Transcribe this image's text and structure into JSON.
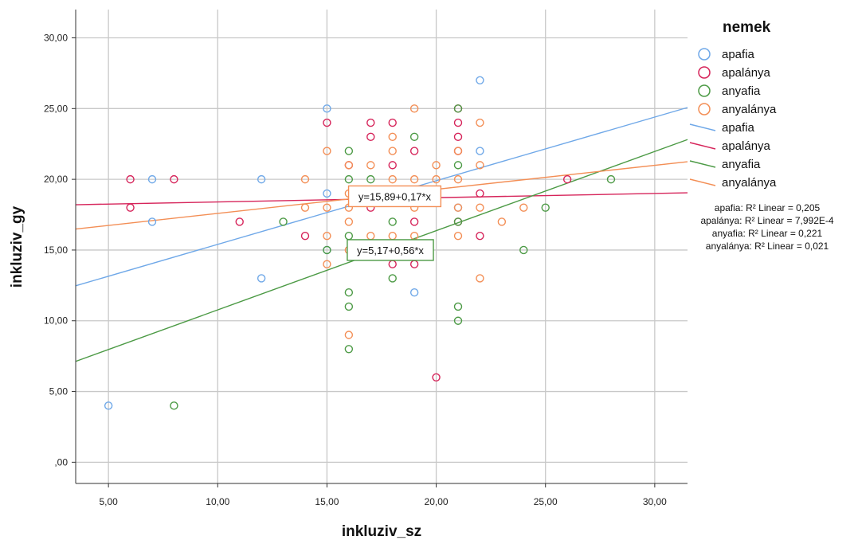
{
  "chart_data": {
    "type": "scatter",
    "xlabel": "inkluziv_sz",
    "ylabel": "inkluziv_gy",
    "xlim": [
      3.5,
      31.5
    ],
    "ylim": [
      -1.5,
      32
    ],
    "xticks": [
      "5,00",
      "10,00",
      "15,00",
      "20,00",
      "25,00",
      "30,00"
    ],
    "xtick_values": [
      5,
      10,
      15,
      20,
      25,
      30
    ],
    "yticks": [
      ",00",
      "5,00",
      "10,00",
      "15,00",
      "20,00",
      "25,00",
      "30,00"
    ],
    "ytick_values": [
      0,
      5,
      10,
      15,
      20,
      25,
      30
    ],
    "grid": true,
    "legend_title": "nemek",
    "legend_position": "right",
    "series": [
      {
        "name": "apafia",
        "color": "#6fa8e8",
        "points": [
          [
            5,
            4
          ],
          [
            7,
            20
          ],
          [
            7,
            17
          ],
          [
            12,
            20
          ],
          [
            12,
            13
          ],
          [
            15,
            25
          ],
          [
            15,
            19
          ],
          [
            15,
            15
          ],
          [
            19,
            12
          ],
          [
            21,
            18
          ],
          [
            22,
            27
          ],
          [
            22,
            22
          ]
        ],
        "fit": {
          "intercept": 10.9,
          "slope": 0.45
        },
        "r2_label": "apafia: R² Linear = 0,205"
      },
      {
        "name": "apalánya",
        "color": "#d6245a",
        "points": [
          [
            6,
            20
          ],
          [
            6,
            18
          ],
          [
            8,
            20
          ],
          [
            11,
            17
          ],
          [
            14,
            16
          ],
          [
            15,
            24
          ],
          [
            16,
            21
          ],
          [
            17,
            24
          ],
          [
            17,
            23
          ],
          [
            17,
            18
          ],
          [
            18,
            24
          ],
          [
            18,
            21
          ],
          [
            18,
            14
          ],
          [
            19,
            22
          ],
          [
            19,
            17
          ],
          [
            19,
            14
          ],
          [
            20,
            6
          ],
          [
            21,
            25
          ],
          [
            21,
            24
          ],
          [
            21,
            23
          ],
          [
            21,
            22
          ],
          [
            21,
            17
          ],
          [
            22,
            19
          ],
          [
            22,
            16
          ],
          [
            26,
            20
          ]
        ],
        "fit": {
          "intercept": 18.1,
          "slope": 0.03
        },
        "r2_label": "apalánya: R² Linear = 7,992E-4"
      },
      {
        "name": "anyafia",
        "color": "#4c9a45",
        "points": [
          [
            8,
            4
          ],
          [
            13,
            17
          ],
          [
            15,
            15
          ],
          [
            16,
            22
          ],
          [
            16,
            20
          ],
          [
            16,
            16
          ],
          [
            16,
            12
          ],
          [
            16,
            11
          ],
          [
            16,
            8
          ],
          [
            17,
            20
          ],
          [
            18,
            17
          ],
          [
            18,
            13
          ],
          [
            19,
            23
          ],
          [
            21,
            25
          ],
          [
            21,
            21
          ],
          [
            21,
            17
          ],
          [
            21,
            11
          ],
          [
            21,
            10
          ],
          [
            24,
            15
          ],
          [
            25,
            18
          ],
          [
            28,
            20
          ]
        ],
        "fit": {
          "intercept": 5.17,
          "slope": 0.56
        },
        "r2_label": "anyafia: R² Linear = 0,221"
      },
      {
        "name": "anyalánya",
        "color": "#f38e55",
        "points": [
          [
            14,
            20
          ],
          [
            14,
            18
          ],
          [
            15,
            22
          ],
          [
            15,
            18
          ],
          [
            15,
            16
          ],
          [
            15,
            14
          ],
          [
            16,
            21
          ],
          [
            16,
            19
          ],
          [
            16,
            18
          ],
          [
            16,
            17
          ],
          [
            16,
            15
          ],
          [
            16,
            9
          ],
          [
            17,
            21
          ],
          [
            17,
            19
          ],
          [
            17,
            16
          ],
          [
            18,
            23
          ],
          [
            18,
            22
          ],
          [
            18,
            20
          ],
          [
            18,
            16
          ],
          [
            19,
            25
          ],
          [
            19,
            20
          ],
          [
            19,
            18
          ],
          [
            19,
            16
          ],
          [
            19,
            15
          ],
          [
            20,
            21
          ],
          [
            20,
            20
          ],
          [
            21,
            22
          ],
          [
            21,
            20
          ],
          [
            21,
            18
          ],
          [
            21,
            16
          ],
          [
            22,
            24
          ],
          [
            22,
            21
          ],
          [
            22,
            18
          ],
          [
            22,
            13
          ],
          [
            23,
            17
          ],
          [
            24,
            18
          ]
        ],
        "fit": {
          "intercept": 15.89,
          "slope": 0.17
        },
        "r2_label": "anyalánya: R² Linear = 0,021"
      }
    ],
    "annotations": [
      {
        "text": "y=15,89+0,17*x",
        "series": "anyalánya",
        "at": [
          18.1,
          18.8
        ]
      },
      {
        "text": "y=5,17+0,56*x",
        "series": "anyafia",
        "at": [
          17.9,
          15.0
        ]
      }
    ]
  }
}
